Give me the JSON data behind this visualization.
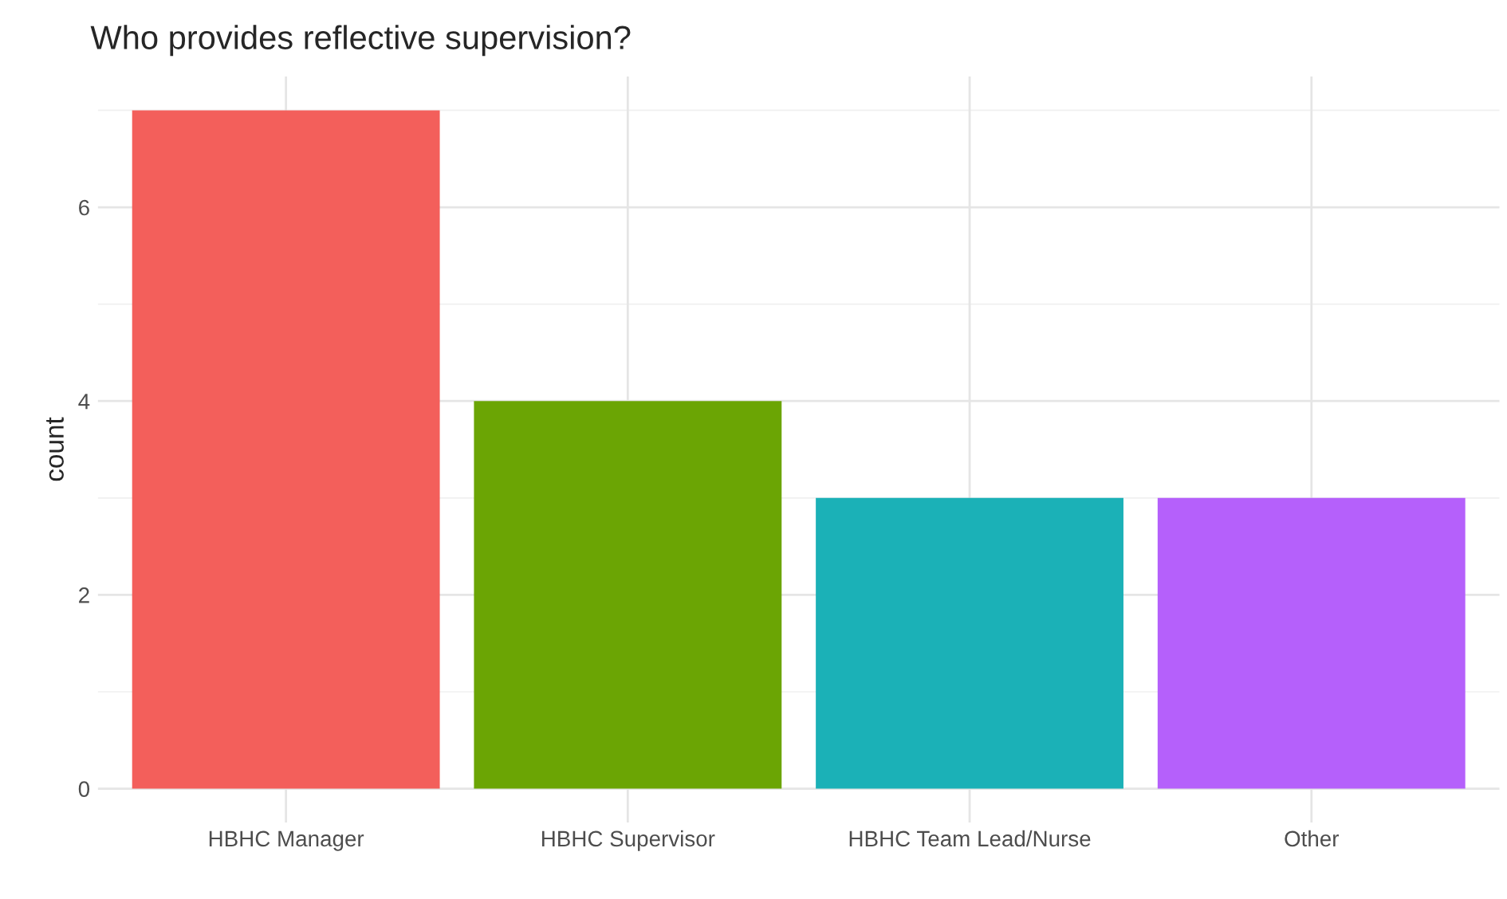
{
  "chart_data": {
    "type": "bar",
    "title": "Who provides reflective supervision?",
    "ylabel": "count",
    "categories": [
      "HBHC Manager",
      "HBHC Supervisor",
      "HBHC Team Lead/Nurse",
      "Other"
    ],
    "values": [
      7,
      4,
      3,
      3
    ],
    "colors": [
      "#f35f5b",
      "#6ba504",
      "#1bb1b7",
      "#b560fb"
    ],
    "ylim": [
      -0.35,
      7.35
    ],
    "yticks": [
      0,
      2,
      4,
      6
    ],
    "grid": true,
    "legend": false
  }
}
